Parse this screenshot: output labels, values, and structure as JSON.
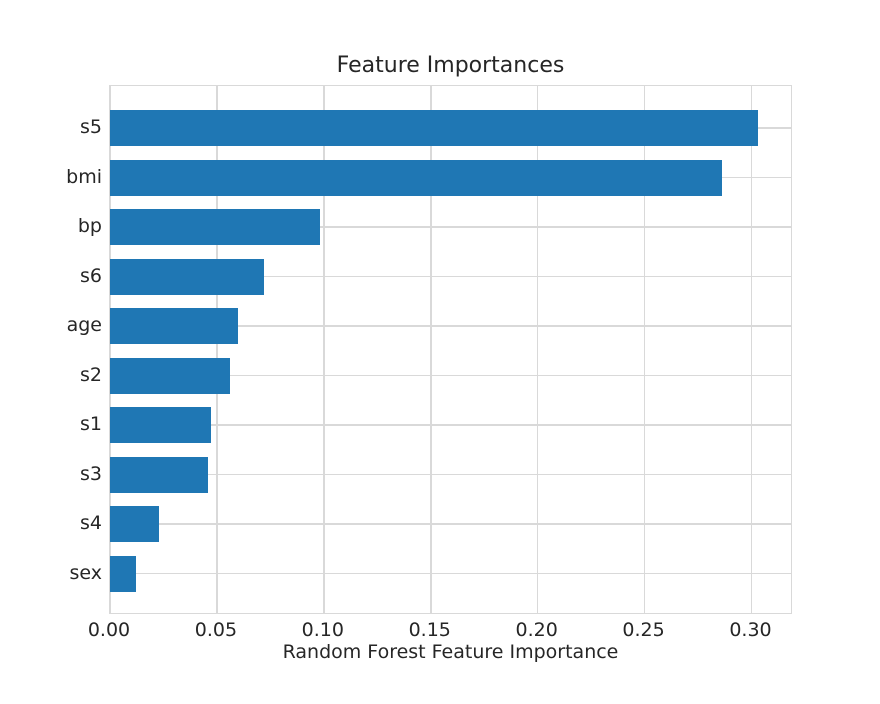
{
  "chart_data": {
    "type": "bar",
    "orientation": "horizontal",
    "title": "Feature Importances",
    "xlabel": "Random Forest Feature Importance",
    "ylabel": "",
    "categories": [
      "s5",
      "bmi",
      "bp",
      "s6",
      "age",
      "s2",
      "s1",
      "s3",
      "s4",
      "sex"
    ],
    "values": [
      0.303,
      0.286,
      0.098,
      0.072,
      0.06,
      0.056,
      0.047,
      0.046,
      0.023,
      0.012
    ],
    "xlim": [
      0,
      0.318
    ],
    "xticks": [
      0.0,
      0.05,
      0.1,
      0.15,
      0.2,
      0.25,
      0.3
    ],
    "xtick_labels": [
      "0.00",
      "0.05",
      "0.10",
      "0.15",
      "0.20",
      "0.25",
      "0.30"
    ],
    "grid": true,
    "legend": null,
    "bar_color": "#1f77b4",
    "grid_color": "#d9d9d9",
    "text_color": "#262626",
    "background_color": "#ffffff"
  }
}
